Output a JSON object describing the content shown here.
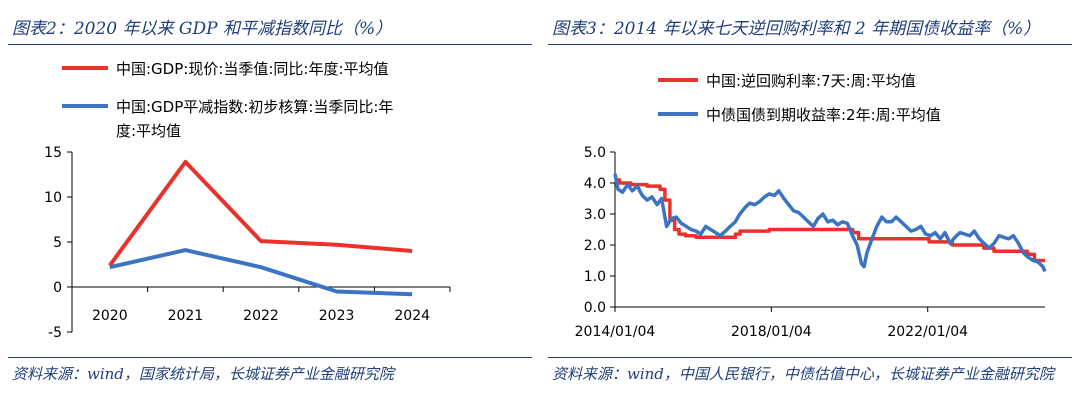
{
  "left": {
    "title": "图表2：2020 年以来 GDP 和平减指数同比（%）",
    "source": "资料来源：wind，国家统计局，长城证券产业金融研究院",
    "legend": [
      {
        "label_line1": "中国:GDP:现价:当季值:同比:年度:平均值",
        "label_line2": "",
        "color": "#e8322b"
      },
      {
        "label_line1": "中国:GDP平减指数:初步核算:当季同比:年",
        "label_line2": "度:平均值",
        "color": "#3a74c2"
      }
    ],
    "chart_data": {
      "type": "line",
      "title": "",
      "categories": [
        "2020",
        "2021",
        "2022",
        "2023",
        "2024"
      ],
      "series": [
        {
          "name": "中国:GDP:现价:当季值:同比:年度:平均值",
          "values": [
            2.4,
            13.9,
            5.1,
            4.7,
            4.0
          ],
          "color": "#e8322b"
        },
        {
          "name": "中国:GDP平减指数:初步核算:当季同比:年度:平均值",
          "values": [
            2.2,
            4.1,
            2.2,
            -0.5,
            -0.8
          ],
          "color": "#3a74c2"
        }
      ],
      "ylim": [
        -5,
        15
      ],
      "yticks": [
        "15",
        "10",
        "5",
        "0",
        "-5"
      ],
      "ytick_values": [
        15,
        10,
        5,
        0,
        -5
      ],
      "xlabel": "",
      "ylabel": "",
      "grid": false
    }
  },
  "right": {
    "title": "图表3：2014 年以来七天逆回购利率和 2 年期国债收益率（%）",
    "source": "资料来源：wind，中国人民银行，中债估值中心，长城证券产业金融研究院",
    "legend": [
      {
        "label": "中国:逆回购利率:7天:周:平均值",
        "color": "#e8322b"
      },
      {
        "label": "中债国债到期收益率:2年:周:平均值",
        "color": "#3a74c2"
      }
    ],
    "chart_data": {
      "type": "line",
      "title": "",
      "x_ticks": [
        "2014/01/04",
        "2018/01/04",
        "2022/01/04"
      ],
      "x_range": [
        "2014/01/04",
        "2025/01/04"
      ],
      "ylim": [
        0.0,
        5.0
      ],
      "yticks": [
        "5.0",
        "4.0",
        "3.0",
        "2.0",
        "1.0",
        "0.0"
      ],
      "ytick_values": [
        5,
        4,
        3,
        2,
        1,
        0
      ],
      "xlabel": "",
      "ylabel": "",
      "grid": false,
      "series": [
        {
          "name": "中国:逆回购利率:7天:周:平均值",
          "color": "#e8322b",
          "x": [
            "2014/01/04",
            "2014/02/15",
            "2014/06/01",
            "2014/11/01",
            "2015/03/01",
            "2015/04/15",
            "2015/06/01",
            "2015/07/15",
            "2015/08/25",
            "2015/10/25",
            "2016/02/01",
            "2017/01/01",
            "2017/02/03",
            "2017/03/17",
            "2017/12/15",
            "2019/11/18",
            "2020/02/03",
            "2020/03/30",
            "2021/12/31",
            "2022/01/17",
            "2022/08/22",
            "2023/06/13",
            "2023/09/15",
            "2024/01/01",
            "2024/07/22",
            "2024/09/27",
            "2025/01/04"
          ],
          "y": [
            4.1,
            4.0,
            3.95,
            3.9,
            3.8,
            3.45,
            2.8,
            2.5,
            2.35,
            2.3,
            2.25,
            2.25,
            2.35,
            2.45,
            2.5,
            2.5,
            2.4,
            2.2,
            2.2,
            2.1,
            2.0,
            1.9,
            1.8,
            1.8,
            1.7,
            1.5,
            1.5
          ]
        },
        {
          "name": "中债国债到期收益率:2年:周:平均值",
          "color": "#3a74c2",
          "x": [
            "2014/01/04",
            "2014/02/01",
            "2014/03/15",
            "2014/05/01",
            "2014/06/15",
            "2014/08/01",
            "2014/09/15",
            "2014/11/01",
            "2014/12/15",
            "2015/02/01",
            "2015/03/15",
            "2015/05/01",
            "2015/06/15",
            "2015/08/01",
            "2015/09/15",
            "2015/11/01",
            "2015/12/15",
            "2016/02/01",
            "2016/03/15",
            "2016/05/01",
            "2016/06/15",
            "2016/08/01",
            "2016/09/15",
            "2016/11/01",
            "2016/12/15",
            "2017/02/01",
            "2017/03/15",
            "2017/05/01",
            "2017/06/15",
            "2017/08/01",
            "2017/09/15",
            "2017/11/01",
            "2017/12/15",
            "2018/02/01",
            "2018/03/15",
            "2018/05/01",
            "2018/06/15",
            "2018/08/01",
            "2018/09/15",
            "2018/11/01",
            "2018/12/15",
            "2019/02/01",
            "2019/03/15",
            "2019/05/01",
            "2019/06/15",
            "2019/08/01",
            "2019/09/15",
            "2019/11/01",
            "2019/12/15",
            "2020/02/01",
            "2020/03/15",
            "2020/04/25",
            "2020/05/20",
            "2020/06/15",
            "2020/08/01",
            "2020/09/15",
            "2020/11/01",
            "2020/12/15",
            "2021/02/01",
            "2021/03/15",
            "2021/05/01",
            "2021/06/15",
            "2021/08/01",
            "2021/09/15",
            "2021/11/01",
            "2021/12/15",
            "2022/02/01",
            "2022/03/15",
            "2022/05/01",
            "2022/06/15",
            "2022/08/01",
            "2022/09/15",
            "2022/11/01",
            "2022/12/15",
            "2023/02/01",
            "2023/03/15",
            "2023/05/01",
            "2023/06/15",
            "2023/08/01",
            "2023/09/15",
            "2023/11/01",
            "2023/12/15",
            "2024/02/01",
            "2024/03/15",
            "2024/05/01",
            "2024/06/15",
            "2024/08/01",
            "2024/09/15",
            "2024/11/01",
            "2024/12/15",
            "2025/01/04"
          ],
          "y": [
            4.3,
            3.8,
            3.7,
            3.95,
            3.75,
            3.9,
            3.6,
            3.45,
            3.55,
            3.3,
            3.5,
            2.6,
            2.85,
            2.9,
            2.7,
            2.6,
            2.5,
            2.45,
            2.35,
            2.6,
            2.5,
            2.4,
            2.3,
            2.45,
            2.6,
            2.75,
            3.0,
            3.2,
            3.35,
            3.3,
            3.4,
            3.55,
            3.65,
            3.6,
            3.75,
            3.5,
            3.3,
            3.1,
            3.05,
            2.9,
            2.75,
            2.6,
            2.85,
            3.0,
            2.75,
            2.8,
            2.65,
            2.75,
            2.7,
            2.3,
            2.0,
            1.4,
            1.3,
            1.75,
            2.2,
            2.6,
            2.9,
            2.75,
            2.75,
            2.9,
            2.75,
            2.6,
            2.45,
            2.5,
            2.6,
            2.35,
            2.3,
            2.4,
            2.2,
            2.4,
            2.05,
            2.25,
            2.4,
            2.35,
            2.3,
            2.45,
            2.2,
            2.05,
            1.9,
            2.05,
            2.3,
            2.25,
            2.2,
            2.3,
            2.05,
            1.75,
            1.6,
            1.5,
            1.45,
            1.3,
            1.15
          ]
        }
      ]
    }
  }
}
